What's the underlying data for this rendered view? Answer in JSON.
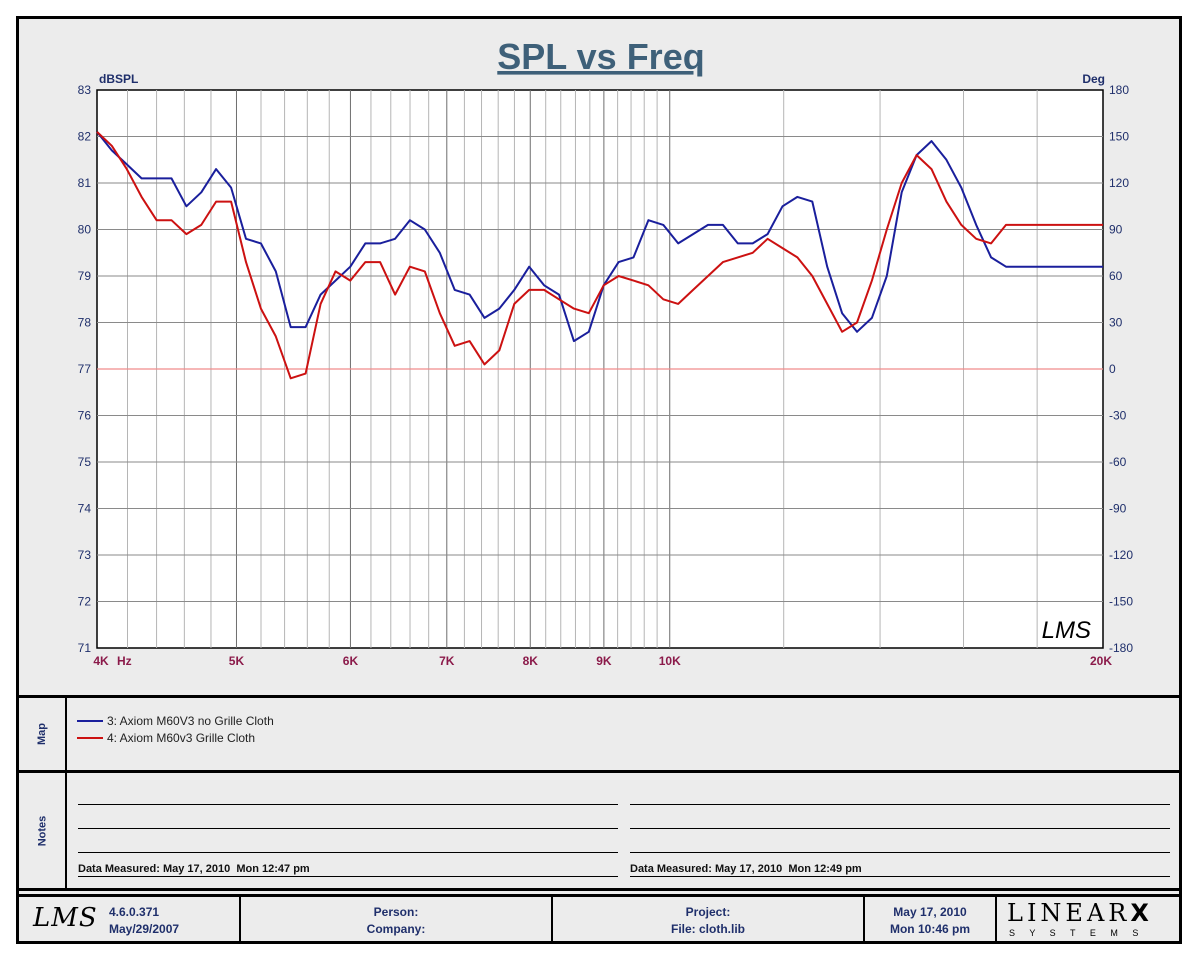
{
  "chart_data": {
    "type": "line",
    "title": "SPL vs Freq",
    "ylabel_left": "dBSPL",
    "ylabel_right": "Deg",
    "xunit": "Hz",
    "xscale": "log",
    "xlim": [
      4000,
      20000
    ],
    "ylim": [
      71,
      83
    ],
    "ylim_right": [
      -180,
      180
    ],
    "x_ticks": [
      {
        "value": 4000,
        "label": "4K"
      },
      {
        "value": 5000,
        "label": "5K"
      },
      {
        "value": 6000,
        "label": "6K"
      },
      {
        "value": 7000,
        "label": "7K"
      },
      {
        "value": 8000,
        "label": "8K"
      },
      {
        "value": 9000,
        "label": "9K"
      },
      {
        "value": 10000,
        "label": "10K"
      },
      {
        "value": 20000,
        "label": "20K"
      }
    ],
    "y_ticks_left": [
      83,
      82,
      81,
      80,
      79,
      78,
      77,
      76,
      75,
      74,
      73,
      72,
      71
    ],
    "y_ticks_right": [
      180,
      150,
      120,
      90,
      60,
      30,
      0,
      -30,
      -60,
      -90,
      -120,
      -150,
      -180
    ],
    "minor_gridlines_hz": [
      4200,
      4400,
      4600,
      4800,
      5200,
      5400,
      5600,
      5800,
      6200,
      6400,
      6600,
      6800,
      7200,
      7400,
      7600,
      7800,
      8200,
      8400,
      8600,
      8800,
      9200,
      9400,
      9600,
      9800,
      12000,
      14000,
      16000,
      18000
    ],
    "reference_line_db": 77,
    "watermark": "LMS",
    "series": [
      {
        "name": "3: Axiom M60V3 no Grille Cloth",
        "color": "#1a1f9c",
        "x": [
          4000,
          4096,
          4195,
          4296,
          4400,
          4506,
          4615,
          4726,
          4840,
          4957,
          5077,
          5199,
          5325,
          5453,
          5585,
          5720,
          5858,
          5999,
          6144,
          6292,
          6444,
          6599,
          6758,
          6922,
          7089,
          7260,
          7435,
          7614,
          7798,
          7986,
          8179,
          8376,
          8578,
          8785,
          8997,
          9214,
          9436,
          9664,
          9897,
          10136,
          10380,
          10631,
          10887,
          11150,
          11419,
          11694,
          11977,
          12265,
          12561,
          12864,
          13175,
          13492,
          13818,
          14151,
          14493,
          14842,
          15200,
          15567,
          15943,
          16327,
          16721,
          17125,
          17538,
          17961,
          18394,
          18838,
          19292,
          19758,
          20000
        ],
        "y": [
          82.1,
          81.7,
          81.4,
          81.1,
          81.1,
          81.1,
          80.5,
          80.8,
          81.3,
          80.9,
          79.8,
          79.7,
          79.1,
          77.9,
          77.9,
          78.6,
          78.9,
          79.2,
          79.7,
          79.7,
          79.8,
          80.2,
          80.0,
          79.5,
          78.7,
          78.6,
          78.1,
          78.3,
          78.7,
          79.2,
          78.8,
          78.6,
          77.6,
          77.8,
          78.8,
          79.3,
          79.4,
          80.2,
          80.1,
          79.7,
          79.9,
          80.1,
          80.1,
          79.7,
          79.7,
          79.9,
          80.5,
          80.7,
          80.6,
          79.2,
          78.2,
          77.8,
          78.1,
          79.0,
          80.8,
          81.6,
          81.9,
          81.5,
          80.9,
          80.1,
          79.4,
          79.2,
          79.2,
          79.2,
          79.2,
          79.2,
          79.2,
          79.2,
          79.2
        ]
      },
      {
        "name": "4: Axiom M60v3 Grille Cloth",
        "color": "#cc1111",
        "x": [
          4000,
          4096,
          4195,
          4296,
          4400,
          4506,
          4615,
          4726,
          4840,
          4957,
          5077,
          5199,
          5325,
          5453,
          5585,
          5720,
          5858,
          5999,
          6144,
          6292,
          6444,
          6599,
          6758,
          6922,
          7089,
          7260,
          7435,
          7614,
          7798,
          7986,
          8179,
          8376,
          8578,
          8785,
          8997,
          9214,
          9436,
          9664,
          9897,
          10136,
          10380,
          10631,
          10887,
          11150,
          11419,
          11694,
          11977,
          12265,
          12561,
          12864,
          13175,
          13492,
          13818,
          14151,
          14493,
          14842,
          15200,
          15567,
          15943,
          16327,
          16721,
          17125,
          17538,
          17961,
          18394,
          18838,
          19292,
          19758,
          20000
        ],
        "y": [
          82.1,
          81.8,
          81.3,
          80.7,
          80.2,
          80.2,
          79.9,
          80.1,
          80.6,
          80.6,
          79.3,
          78.3,
          77.7,
          76.8,
          76.9,
          78.4,
          79.1,
          78.9,
          79.3,
          79.3,
          78.6,
          79.2,
          79.1,
          78.2,
          77.5,
          77.6,
          77.1,
          77.4,
          78.4,
          78.7,
          78.7,
          78.5,
          78.3,
          78.2,
          78.8,
          79.0,
          78.9,
          78.8,
          78.5,
          78.4,
          78.7,
          79.0,
          79.3,
          79.4,
          79.5,
          79.8,
          79.6,
          79.4,
          79.0,
          78.4,
          77.8,
          78.0,
          78.9,
          80.0,
          81.0,
          81.6,
          81.3,
          80.6,
          80.1,
          79.8,
          79.7,
          80.1,
          80.1,
          80.1,
          80.1,
          80.1,
          80.1,
          80.1,
          80.1
        ]
      }
    ]
  },
  "map": {
    "label": "Map",
    "legend": [
      {
        "text": "3: Axiom M60V3 no Grille Cloth",
        "color": "#1a1f9c"
      },
      {
        "text": "4: Axiom M60v3 Grille Cloth",
        "color": "#cc1111"
      }
    ]
  },
  "notes": {
    "label": "Notes",
    "left": "Data Measured: May 17, 2010  Mon 12:47 pm",
    "right": "Data Measured: May 17, 2010  Mon 12:49 pm"
  },
  "footer": {
    "logo": "LMS",
    "version": "4.6.0.371",
    "version_date": "May/29/2007",
    "person": "Person:",
    "company": "Company:",
    "project": "Project:",
    "file": "File: cloth.lib",
    "date": "May 17, 2010",
    "time": "Mon 10:46 pm",
    "brand": "LINEAR",
    "brand_x": "X",
    "brand_sub": "S Y S T E M S"
  }
}
